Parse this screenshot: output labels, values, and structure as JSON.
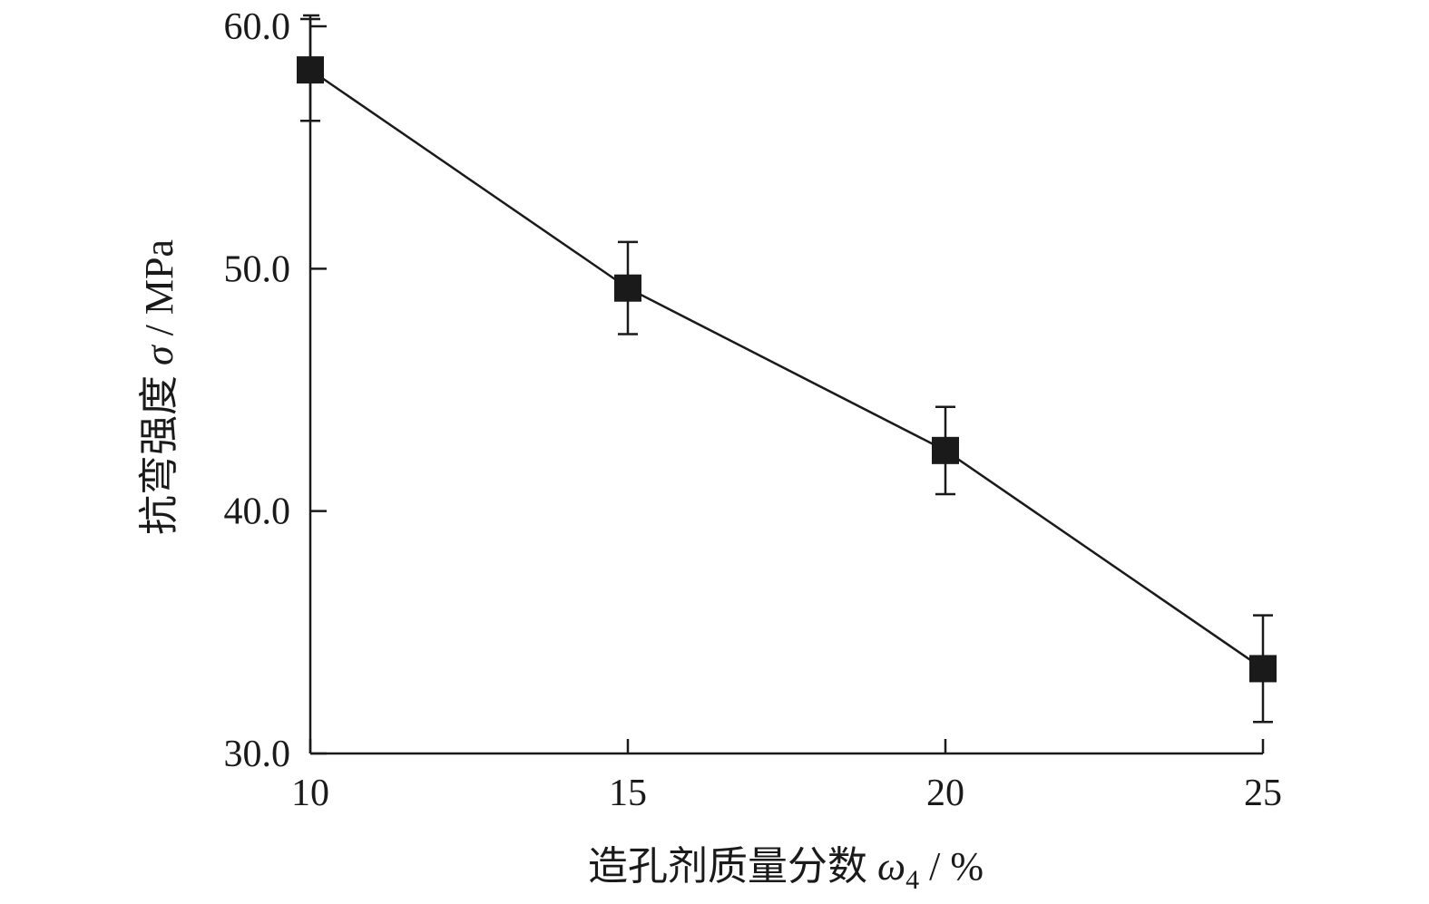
{
  "chart_data": {
    "type": "line",
    "title": "",
    "xlabel": "造孔剂质量分数 ω4 / %",
    "xlabel_parts": {
      "prefix": "造孔剂质量分数 ",
      "symbol": "ω",
      "subscript": "4",
      "suffix": " / %"
    },
    "ylabel": "抗弯强度 σ / MPa",
    "ylabel_parts": {
      "prefix": "抗弯强度 ",
      "symbol": "σ",
      "suffix": " / MPa"
    },
    "xlim": [
      10,
      25
    ],
    "ylim": [
      30,
      60
    ],
    "xticks": [
      10,
      15,
      20,
      25
    ],
    "xtick_labels": [
      "10",
      "15",
      "20",
      "25"
    ],
    "yticks": [
      30,
      40,
      50,
      60
    ],
    "ytick_labels": [
      "30.0",
      "40.0",
      "50.0",
      "60.0"
    ],
    "grid": false,
    "legend": "none",
    "marker": "filled-square",
    "series": [
      {
        "x": [
          10,
          15,
          20,
          25
        ],
        "values": [
          58.2,
          49.2,
          42.5,
          33.5
        ],
        "error_low": [
          2.1,
          1.9,
          1.8,
          2.2
        ],
        "error_high": [
          2.1,
          1.9,
          1.8,
          2.2
        ]
      }
    ],
    "colors": {
      "line": "#1a1a1a",
      "marker": "#1a1a1a",
      "axis": "#1a1a1a"
    }
  }
}
